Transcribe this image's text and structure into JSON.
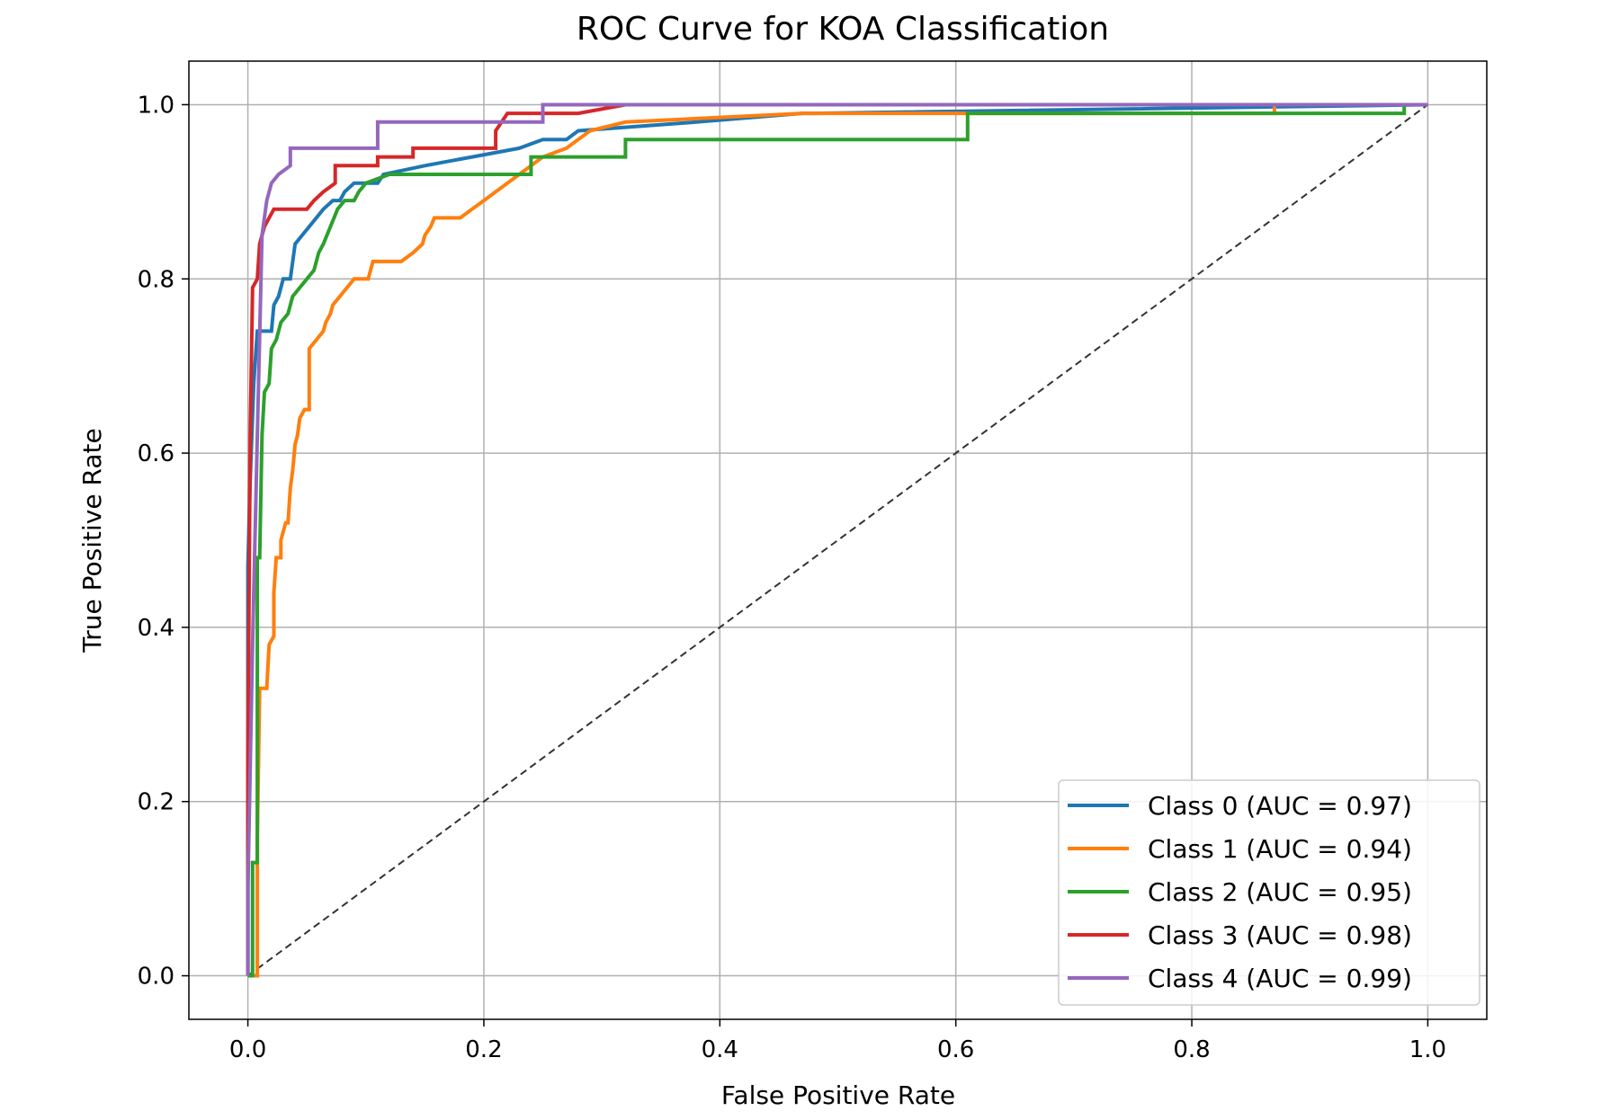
{
  "chart_data": {
    "type": "line",
    "title": "ROC Curve for KOA Classification",
    "xlabel": "False Positive Rate",
    "ylabel": "True Positive Rate",
    "xlim": [
      -0.05,
      1.05
    ],
    "ylim": [
      -0.05,
      1.05
    ],
    "xticks": [
      "0.0",
      "0.2",
      "0.4",
      "0.6",
      "0.8",
      "1.0"
    ],
    "yticks": [
      "0.0",
      "0.2",
      "0.4",
      "0.6",
      "0.8",
      "1.0"
    ],
    "grid": true,
    "legend_position": "lower-right",
    "diagonal": {
      "x": [
        0,
        1
      ],
      "y": [
        0,
        1
      ],
      "style": "dashed",
      "color": "#333333"
    },
    "series": [
      {
        "name": "Class 0 (AUC = 0.97)",
        "color": "#1f77b4",
        "points": [
          [
            0,
            0
          ],
          [
            0,
            0.47
          ],
          [
            0.002,
            0.57
          ],
          [
            0.005,
            0.68
          ],
          [
            0.008,
            0.74
          ],
          [
            0.02,
            0.74
          ],
          [
            0.022,
            0.77
          ],
          [
            0.026,
            0.78
          ],
          [
            0.03,
            0.8
          ],
          [
            0.036,
            0.8
          ],
          [
            0.04,
            0.84
          ],
          [
            0.046,
            0.85
          ],
          [
            0.052,
            0.86
          ],
          [
            0.058,
            0.87
          ],
          [
            0.064,
            0.88
          ],
          [
            0.072,
            0.89
          ],
          [
            0.078,
            0.89
          ],
          [
            0.082,
            0.9
          ],
          [
            0.09,
            0.91
          ],
          [
            0.11,
            0.91
          ],
          [
            0.115,
            0.92
          ],
          [
            0.15,
            0.93
          ],
          [
            0.19,
            0.94
          ],
          [
            0.23,
            0.95
          ],
          [
            0.25,
            0.96
          ],
          [
            0.27,
            0.96
          ],
          [
            0.28,
            0.97
          ],
          [
            0.38,
            0.98
          ],
          [
            0.47,
            0.99
          ],
          [
            0.48,
            0.99
          ],
          [
            1,
            1
          ]
        ]
      },
      {
        "name": "Class 1 (AUC = 0.94)",
        "color": "#ff7f0e",
        "points": [
          [
            0,
            0
          ],
          [
            0.008,
            0
          ],
          [
            0.008,
            0.16
          ],
          [
            0.01,
            0.33
          ],
          [
            0.016,
            0.33
          ],
          [
            0.018,
            0.38
          ],
          [
            0.022,
            0.39
          ],
          [
            0.022,
            0.44
          ],
          [
            0.024,
            0.48
          ],
          [
            0.028,
            0.48
          ],
          [
            0.028,
            0.5
          ],
          [
            0.032,
            0.52
          ],
          [
            0.034,
            0.52
          ],
          [
            0.036,
            0.56
          ],
          [
            0.038,
            0.58
          ],
          [
            0.04,
            0.61
          ],
          [
            0.042,
            0.62
          ],
          [
            0.044,
            0.64
          ],
          [
            0.048,
            0.65
          ],
          [
            0.052,
            0.65
          ],
          [
            0.052,
            0.72
          ],
          [
            0.058,
            0.73
          ],
          [
            0.064,
            0.74
          ],
          [
            0.066,
            0.75
          ],
          [
            0.07,
            0.76
          ],
          [
            0.072,
            0.77
          ],
          [
            0.078,
            0.78
          ],
          [
            0.084,
            0.79
          ],
          [
            0.09,
            0.8
          ],
          [
            0.102,
            0.8
          ],
          [
            0.106,
            0.82
          ],
          [
            0.13,
            0.82
          ],
          [
            0.14,
            0.83
          ],
          [
            0.148,
            0.84
          ],
          [
            0.15,
            0.85
          ],
          [
            0.155,
            0.86
          ],
          [
            0.158,
            0.87
          ],
          [
            0.18,
            0.87
          ],
          [
            0.19,
            0.88
          ],
          [
            0.2,
            0.89
          ],
          [
            0.21,
            0.9
          ],
          [
            0.22,
            0.91
          ],
          [
            0.23,
            0.92
          ],
          [
            0.24,
            0.93
          ],
          [
            0.25,
            0.94
          ],
          [
            0.27,
            0.95
          ],
          [
            0.28,
            0.96
          ],
          [
            0.29,
            0.97
          ],
          [
            0.32,
            0.98
          ],
          [
            0.47,
            0.99
          ],
          [
            0.87,
            0.99
          ],
          [
            0.87,
            1
          ],
          [
            1,
            1
          ]
        ]
      },
      {
        "name": "Class 2 (AUC = 0.95)",
        "color": "#2ca02c",
        "points": [
          [
            0,
            0
          ],
          [
            0.004,
            0
          ],
          [
            0.004,
            0.13
          ],
          [
            0.008,
            0.13
          ],
          [
            0.008,
            0.48
          ],
          [
            0.01,
            0.48
          ],
          [
            0.012,
            0.62
          ],
          [
            0.014,
            0.67
          ],
          [
            0.018,
            0.68
          ],
          [
            0.02,
            0.72
          ],
          [
            0.024,
            0.73
          ],
          [
            0.028,
            0.75
          ],
          [
            0.034,
            0.76
          ],
          [
            0.038,
            0.78
          ],
          [
            0.044,
            0.79
          ],
          [
            0.05,
            0.8
          ],
          [
            0.056,
            0.81
          ],
          [
            0.06,
            0.83
          ],
          [
            0.064,
            0.84
          ],
          [
            0.07,
            0.86
          ],
          [
            0.076,
            0.88
          ],
          [
            0.082,
            0.89
          ],
          [
            0.09,
            0.89
          ],
          [
            0.094,
            0.9
          ],
          [
            0.1,
            0.91
          ],
          [
            0.12,
            0.92
          ],
          [
            0.24,
            0.92
          ],
          [
            0.24,
            0.94
          ],
          [
            0.32,
            0.94
          ],
          [
            0.32,
            0.96
          ],
          [
            0.61,
            0.96
          ],
          [
            0.61,
            0.99
          ],
          [
            0.98,
            0.99
          ],
          [
            0.98,
            1
          ],
          [
            1,
            1
          ]
        ]
      },
      {
        "name": "Class 3 (AUC = 0.98)",
        "color": "#d62728",
        "points": [
          [
            0,
            0
          ],
          [
            0,
            0.25
          ],
          [
            0.002,
            0.62
          ],
          [
            0.004,
            0.79
          ],
          [
            0.008,
            0.8
          ],
          [
            0.01,
            0.84
          ],
          [
            0.014,
            0.86
          ],
          [
            0.018,
            0.87
          ],
          [
            0.022,
            0.88
          ],
          [
            0.05,
            0.88
          ],
          [
            0.056,
            0.89
          ],
          [
            0.064,
            0.9
          ],
          [
            0.074,
            0.91
          ],
          [
            0.074,
            0.93
          ],
          [
            0.11,
            0.93
          ],
          [
            0.11,
            0.94
          ],
          [
            0.14,
            0.94
          ],
          [
            0.14,
            0.95
          ],
          [
            0.21,
            0.95
          ],
          [
            0.21,
            0.97
          ],
          [
            0.22,
            0.99
          ],
          [
            0.28,
            0.99
          ],
          [
            0.32,
            1
          ],
          [
            1,
            1
          ]
        ]
      },
      {
        "name": "Class 4 (AUC = 0.99)",
        "color": "#9467bd",
        "points": [
          [
            0,
            0
          ],
          [
            0,
            0.1
          ],
          [
            0.004,
            0.38
          ],
          [
            0.008,
            0.62
          ],
          [
            0.012,
            0.85
          ],
          [
            0.016,
            0.89
          ],
          [
            0.02,
            0.91
          ],
          [
            0.026,
            0.92
          ],
          [
            0.036,
            0.93
          ],
          [
            0.036,
            0.95
          ],
          [
            0.11,
            0.95
          ],
          [
            0.11,
            0.98
          ],
          [
            0.25,
            0.98
          ],
          [
            0.25,
            1
          ],
          [
            1,
            1
          ]
        ]
      }
    ]
  }
}
